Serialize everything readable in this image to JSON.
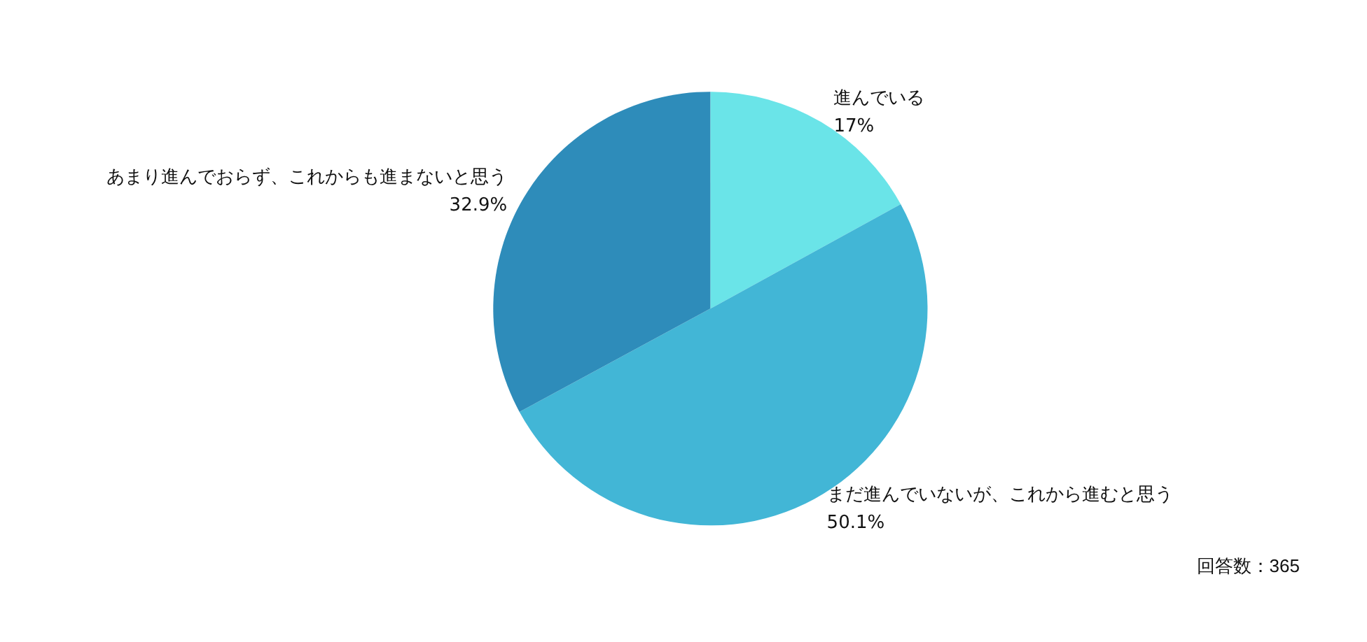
{
  "chart_data": {
    "type": "pie",
    "categories": [
      "進んでいる",
      "まだ進んでいないが、これから進むと思う",
      "あまり進んでおらず、これからも進まないと思う"
    ],
    "values": [
      17,
      50.1,
      32.9
    ],
    "colors": [
      "#6ae4e8",
      "#42b6d6",
      "#2e8cba"
    ],
    "value_labels": [
      "17%",
      "50.1%",
      "32.9%"
    ],
    "legend": false,
    "annotations": [
      "回答数：365"
    ]
  }
}
